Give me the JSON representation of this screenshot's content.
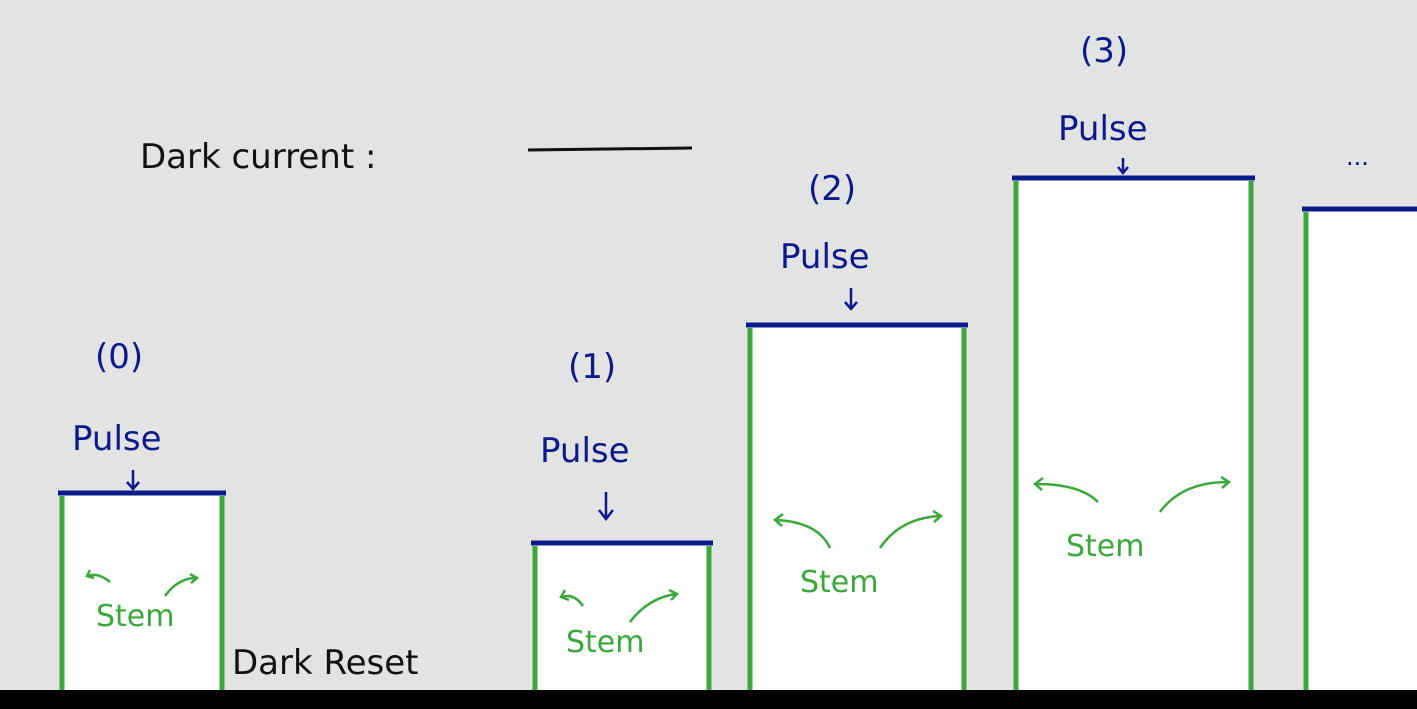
{
  "dark_current": {
    "label": "Dark current :"
  },
  "dark_reset": {
    "label": "Dark Reset"
  },
  "ellipsis": "...",
  "pulses": [
    {
      "number": "(0)",
      "label": "Pulse",
      "stem": "Stem"
    },
    {
      "number": "(1)",
      "label": "Pulse",
      "stem": "Stem"
    },
    {
      "number": "(2)",
      "label": "Pulse",
      "stem": "Stem"
    },
    {
      "number": "(3)",
      "label": "Pulse",
      "stem": "Stem"
    }
  ],
  "colors": {
    "background": "#e3e3e3",
    "pulse_top": "#0a1a8a",
    "stem": "#3aa83a",
    "box_fill": "#ffffff",
    "dark_line": "#111111",
    "bottom_bar": "#000000"
  }
}
